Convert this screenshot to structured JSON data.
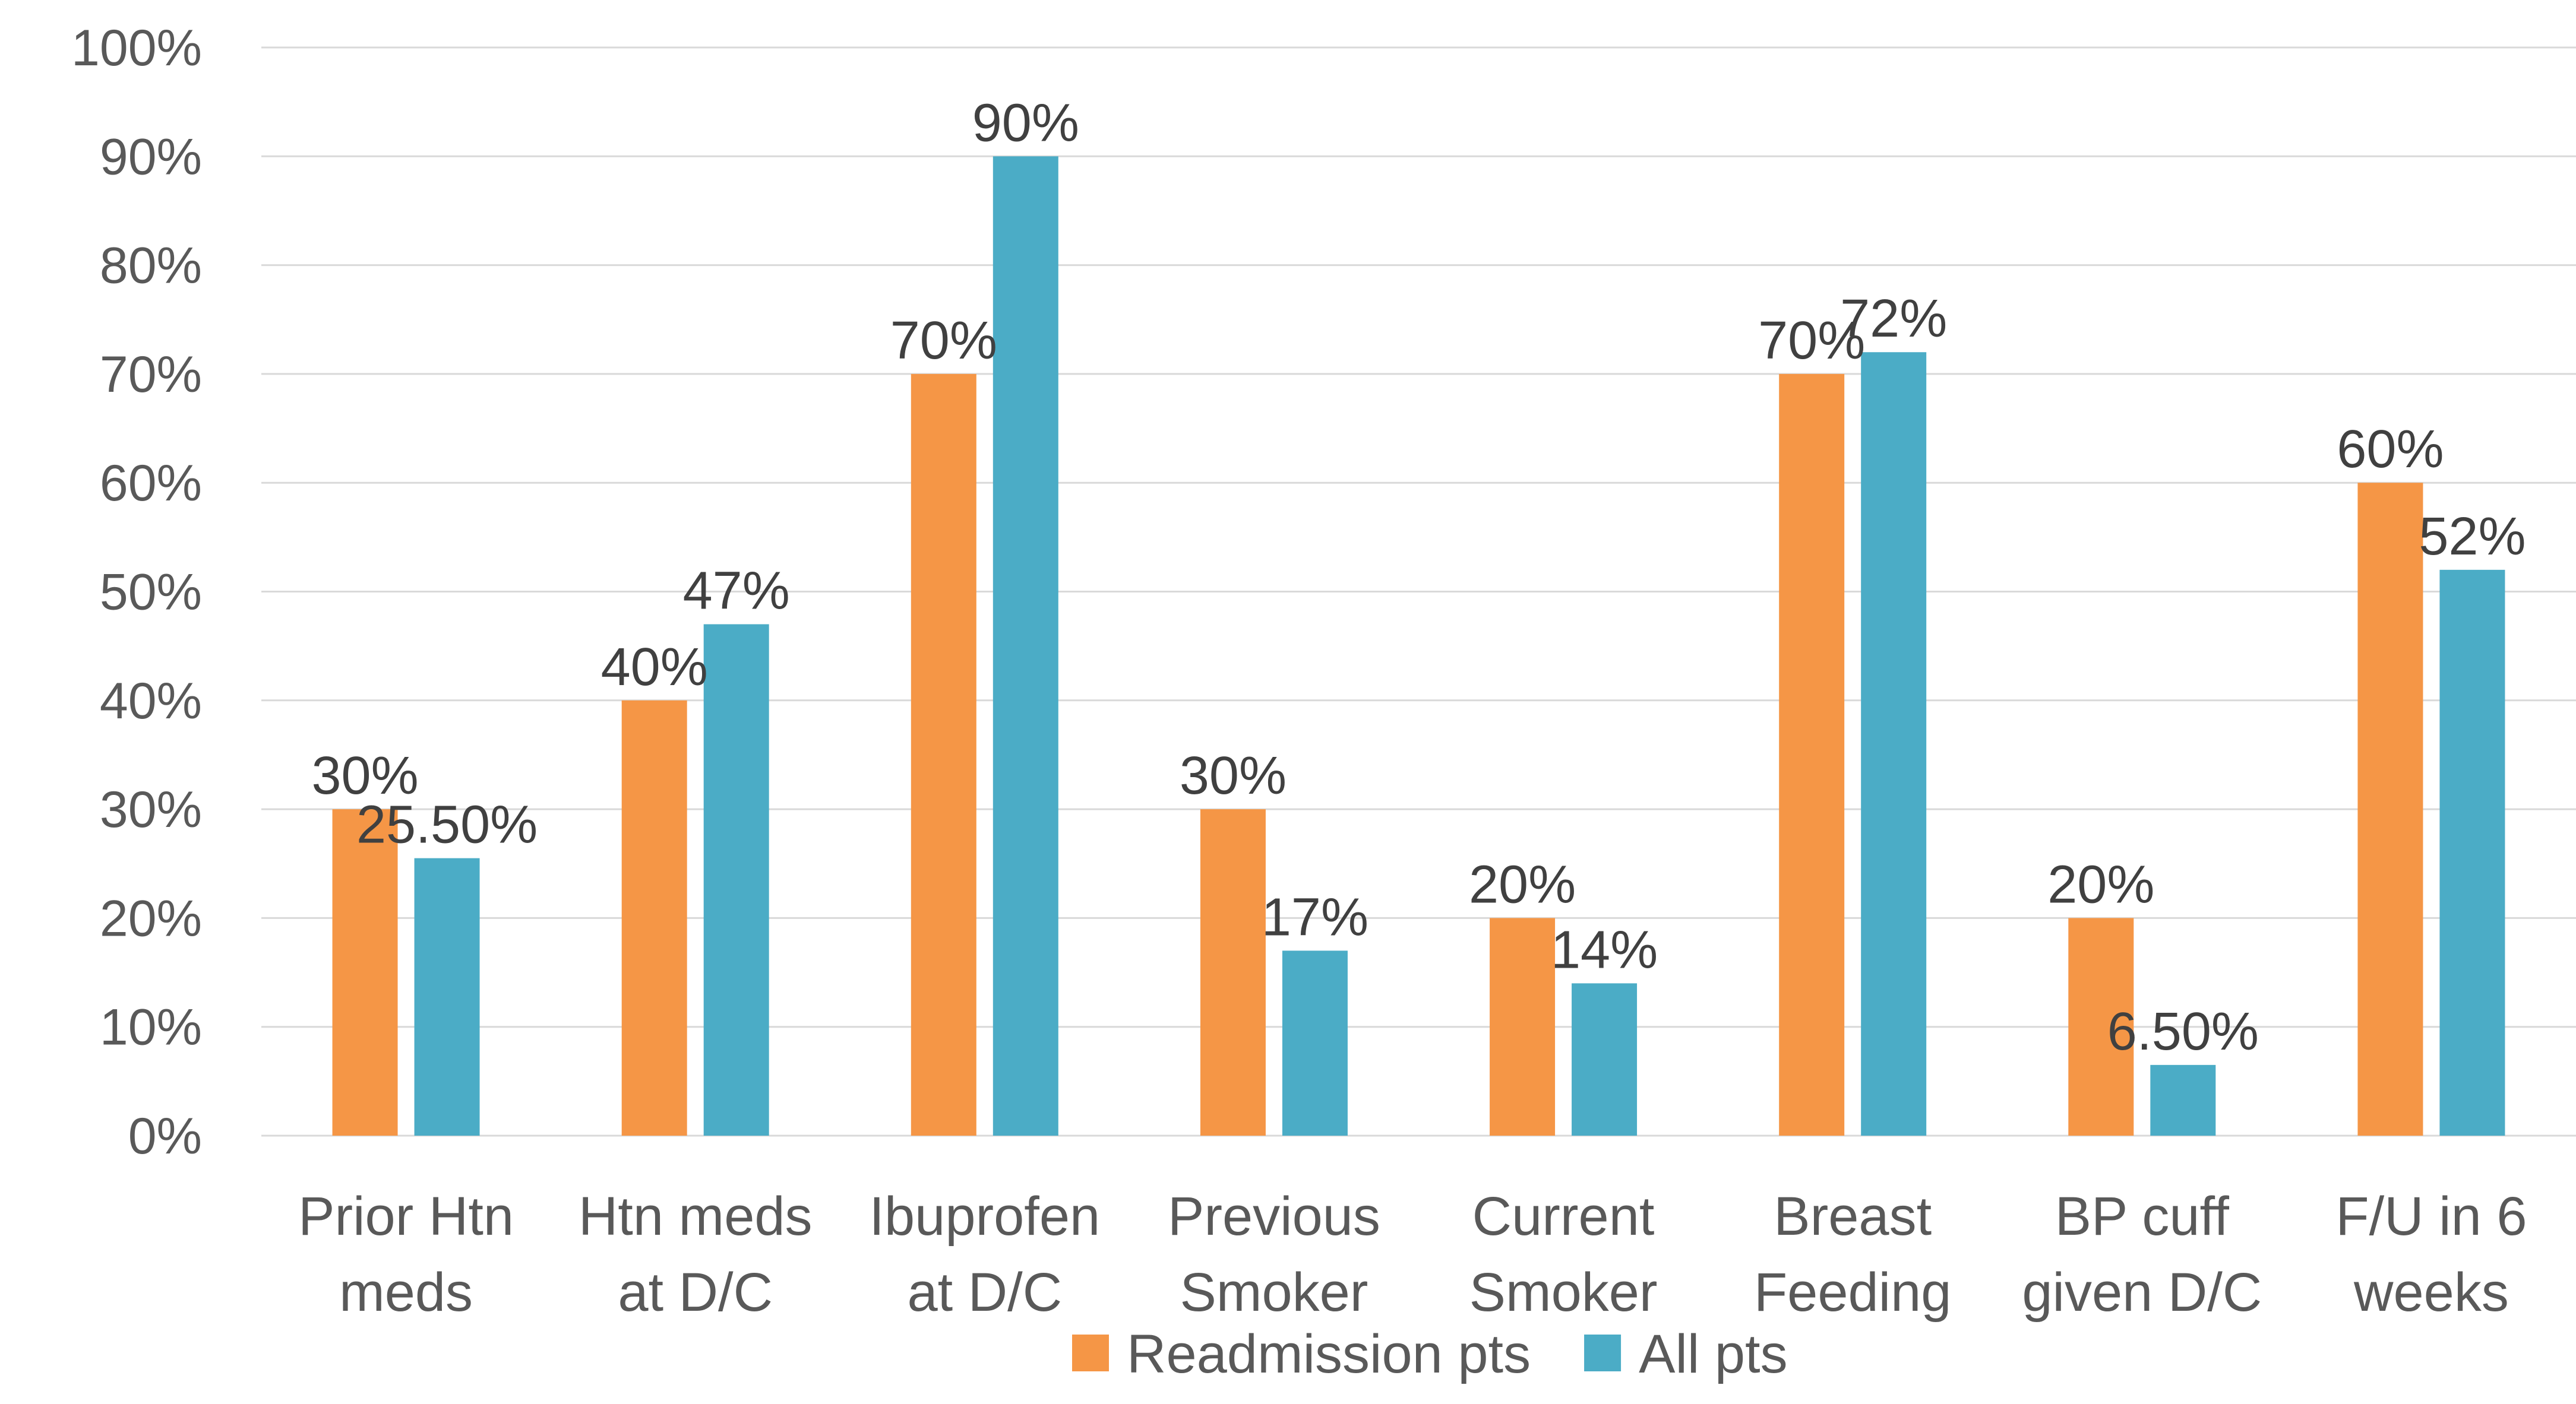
{
  "chart_data": {
    "type": "bar",
    "categories": [
      [
        "Prior Htn",
        "meds"
      ],
      [
        "Htn meds",
        "at D/C"
      ],
      [
        "Ibuprofen",
        "at D/C"
      ],
      [
        "Previous",
        "Smoker"
      ],
      [
        "Current",
        "Smoker"
      ],
      [
        "Breast",
        "Feeding"
      ],
      [
        "BP cuff",
        "given D/C"
      ],
      [
        "F/U in 6",
        "weeks"
      ]
    ],
    "series": [
      {
        "name": "Readmission pts",
        "color": "#F59646",
        "values": [
          30,
          40,
          70,
          30,
          20,
          70,
          20,
          60
        ],
        "labels": [
          "30%",
          "40%",
          "70%",
          "30%",
          "20%",
          "70%",
          "20%",
          "60%"
        ]
      },
      {
        "name": "All pts",
        "color": "#4BACC6",
        "values": [
          25.5,
          47,
          90,
          17,
          14,
          72,
          6.5,
          52
        ],
        "labels": [
          "25.50%",
          "47%",
          "90%",
          "17%",
          "14%",
          "72%",
          "6.50%",
          "52%"
        ]
      }
    ],
    "y_ticks": [
      "0%",
      "10%",
      "20%",
      "30%",
      "40%",
      "50%",
      "60%",
      "70%",
      "80%",
      "90%",
      "100%"
    ],
    "ylim": [
      0,
      100
    ],
    "grid": true,
    "legend_position": "bottom",
    "title": "",
    "xlabel": "",
    "ylabel": ""
  }
}
